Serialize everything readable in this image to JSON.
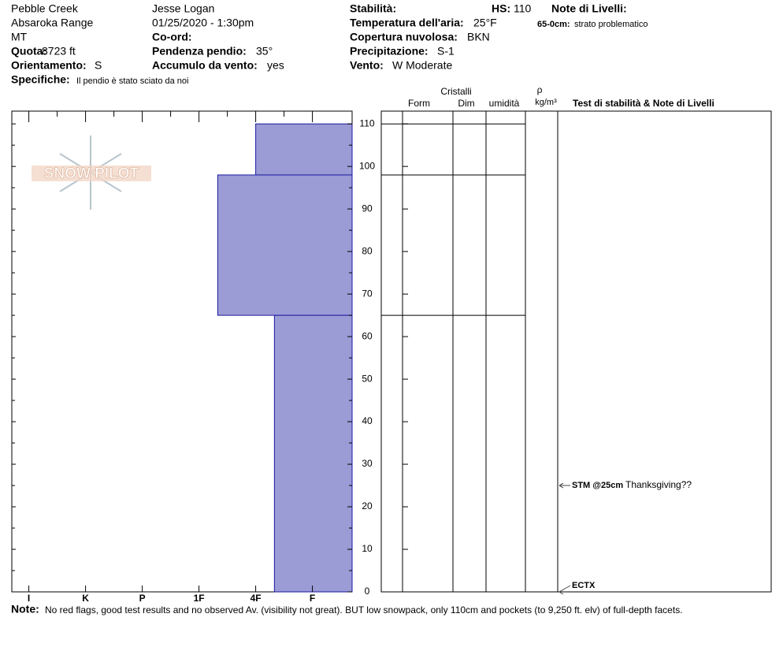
{
  "header": {
    "location": "Pebble Creek",
    "range": "Absaroka Range",
    "state": "MT",
    "elevation": {
      "label": "Quota:",
      "value": "8723 ft"
    },
    "aspect": {
      "label": "Orientamento:",
      "value": "S"
    },
    "specifics": {
      "label": "Specifiche:",
      "value": "Il pendio è stato sciato da noi"
    },
    "observer": "Jesse Logan",
    "datetime": "01/25/2020 - 1:30pm",
    "coords": {
      "label": "Co-ord:"
    },
    "slope": {
      "label": "Pendenza pendio:",
      "value": "35°"
    },
    "wind_loading": {
      "label": "Accumulo da vento:",
      "value": "yes"
    },
    "stability": {
      "label": "Stabilità:"
    },
    "hs": {
      "label": "HS:",
      "value": "110"
    },
    "air_temp": {
      "label": "Temperatura dell'aria:",
      "value": "25°F"
    },
    "sky": {
      "label": "Copertura nuvolosa:",
      "value": "BKN"
    },
    "precip": {
      "label": "Precipitazione:",
      "value": "S-1"
    },
    "wind": {
      "label": "Vento:",
      "value": "W Moderate"
    },
    "layer_notes": {
      "label": "Note di Livelli:",
      "items": [
        {
          "label": "65-0cm:",
          "value": "strato problematico"
        }
      ]
    }
  },
  "logo": "SNOW PILOT",
  "chart_data": {
    "type": "snow-profile",
    "ylim": [
      0,
      113
    ],
    "yticks": [
      0,
      10,
      20,
      30,
      40,
      50,
      60,
      70,
      80,
      90,
      100,
      110
    ],
    "xlim": [
      6.3,
      0.3
    ],
    "xticks": [
      {
        "value": 6,
        "label": "I"
      },
      {
        "value": 5,
        "label": "K"
      },
      {
        "value": 4,
        "label": "P"
      },
      {
        "value": 3,
        "label": "1F"
      },
      {
        "value": 2,
        "label": "4F"
      },
      {
        "value": 1,
        "label": "F"
      }
    ],
    "color": "#9b9bd6",
    "layers": [
      {
        "top": 110,
        "bottom": 98,
        "hardness": 2
      },
      {
        "top": 98,
        "bottom": 65,
        "hardness": 2.67
      },
      {
        "top": 65,
        "bottom": 0,
        "hardness": 1.67
      }
    ],
    "columns": {
      "crystals": "Cristalli",
      "form": "Form",
      "size": "Dim",
      "moisture": "umidità",
      "density": "ρ",
      "density_unit": "kg/m³",
      "tests": "Test di stabilità & Note di Livelli"
    },
    "tests": [
      {
        "depth": 25,
        "label": "STM @25cm",
        "note": "Thanksgiving??"
      },
      {
        "depth": 0,
        "label": "ECTX"
      }
    ]
  },
  "note": {
    "label": "Note:",
    "value": "No red flags, good test results and no observed Av. (visibility not great). BUT low snowpack, only 110cm and pockets (to 9,250 ft. elv) of full-depth facets."
  }
}
